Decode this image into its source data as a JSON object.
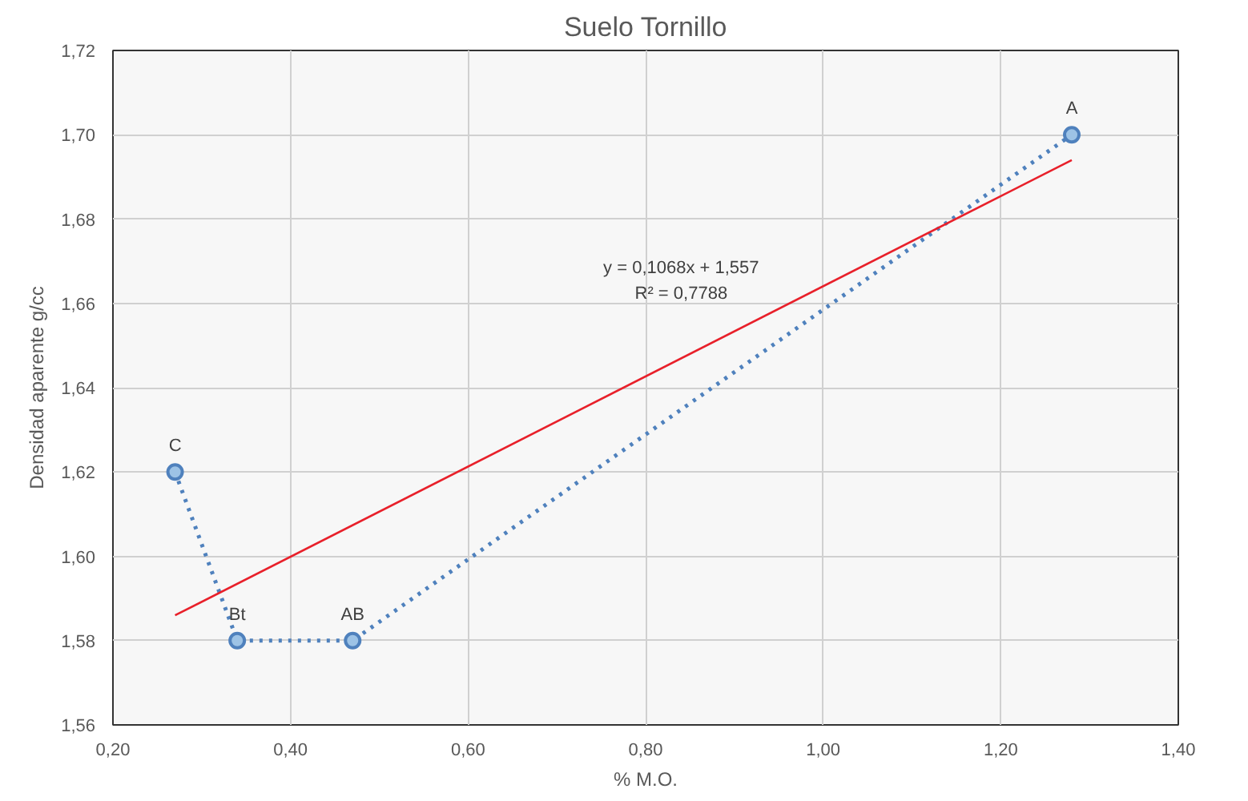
{
  "chart_data": {
    "type": "line",
    "title": "Suelo Tornillo",
    "xlabel": "% M.O.",
    "ylabel": "Densidad aparente g/cc",
    "xlim": [
      0.2,
      1.4
    ],
    "ylim": [
      1.56,
      1.72
    ],
    "xticks": [
      {
        "value": 0.2,
        "label": "0,20"
      },
      {
        "value": 0.4,
        "label": "0,40"
      },
      {
        "value": 0.6,
        "label": "0,60"
      },
      {
        "value": 0.8,
        "label": "0,80"
      },
      {
        "value": 1.0,
        "label": "1,00"
      },
      {
        "value": 1.2,
        "label": "1,20"
      },
      {
        "value": 1.4,
        "label": "1,40"
      }
    ],
    "yticks": [
      {
        "value": 1.56,
        "label": "1,56"
      },
      {
        "value": 1.58,
        "label": "1,58"
      },
      {
        "value": 1.6,
        "label": "1,60"
      },
      {
        "value": 1.62,
        "label": "1,62"
      },
      {
        "value": 1.64,
        "label": "1,64"
      },
      {
        "value": 1.66,
        "label": "1,66"
      },
      {
        "value": 1.68,
        "label": "1,68"
      },
      {
        "value": 1.7,
        "label": "1,70"
      },
      {
        "value": 1.72,
        "label": "1,72"
      }
    ],
    "grid": true,
    "series": [
      {
        "color": "#4f81bd",
        "x": [
          0.27,
          0.34,
          0.47,
          1.28
        ],
        "values": [
          1.62,
          1.58,
          1.58,
          1.7
        ],
        "marker": "circle",
        "line_style": "dotted"
      },
      {
        "color": "#e8202a",
        "x": [
          0.27,
          1.28
        ],
        "values": [
          1.586,
          1.694
        ],
        "marker": "none",
        "line_style": "solid"
      }
    ],
    "annotations": [
      {
        "text": "C",
        "x": 0.27,
        "y": 1.62
      },
      {
        "text": "Bt",
        "x": 0.34,
        "y": 1.58
      },
      {
        "text": "AB",
        "x": 0.47,
        "y": 1.58
      },
      {
        "text": "A",
        "x": 1.28,
        "y": 1.7
      },
      "y = 0,1068x + 1,557",
      "R² = 0,7788"
    ]
  }
}
